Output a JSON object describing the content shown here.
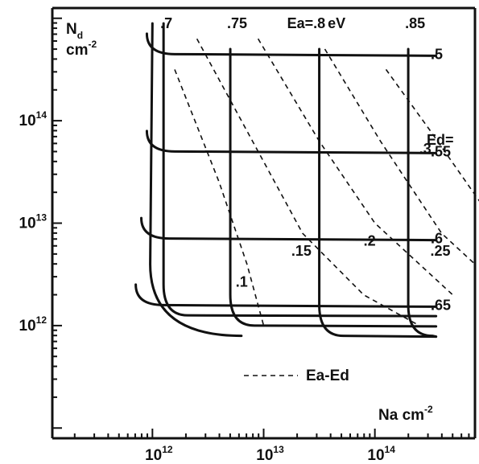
{
  "chart_data": {
    "type": "line",
    "title": "",
    "xlabel": {
      "base": "Na cm",
      "exp": "-2"
    },
    "ylabel": {
      "base": "N",
      "sub": "d",
      "unit": "cm",
      "exp": "-2"
    },
    "x_ticks": [
      {
        "base": "10",
        "exp": "12"
      },
      {
        "base": "10",
        "exp": "13"
      },
      {
        "base": "10",
        "exp": "14"
      }
    ],
    "y_ticks": [
      {
        "base": "10",
        "exp": "12"
      },
      {
        "base": "10",
        "exp": "13"
      },
      {
        "base": "10",
        "exp": "14"
      }
    ],
    "x_scale": "log",
    "y_scale": "log",
    "xlim_log10": [
      11.1,
      14.9
    ],
    "ylim_log10": [
      10.9,
      15.1
    ],
    "grid": false,
    "solid_family_name": "Ea",
    "solid_family_unit": "eV",
    "ea_curves": [
      {
        "label": ".7",
        "value": 0.7,
        "x_asymptote_log10": 12.1,
        "y_floor_log10": 12.1
      },
      {
        "label": ".75",
        "value": 0.75,
        "x_asymptote_log10": 12.7,
        "y_floor_log10": 12.0
      },
      {
        "label": ".8",
        "value": 0.8,
        "x_asymptote_log10": 13.5,
        "y_floor_log10": 11.9
      },
      {
        "label": ".85",
        "value": 0.85,
        "x_asymptote_log10": 14.3,
        "y_floor_log10": 11.9
      }
    ],
    "ea_header_label": "Ea=",
    "ed_header_label": "Ed=",
    "ed_curves": [
      {
        "label": ".5",
        "value": 0.5,
        "y_plateau_log10": 14.65,
        "x_knee_log10": 12.05
      },
      {
        "label": ".55",
        "value": 0.55,
        "y_plateau_log10": 13.7,
        "x_knee_log10": 12.05
      },
      {
        "label": ".6",
        "value": 0.6,
        "y_plateau_log10": 12.85,
        "x_knee_log10": 12.0
      },
      {
        "label": ".65",
        "value": 0.65,
        "y_plateau_log10": 12.2,
        "x_knee_log10": 11.95
      }
    ],
    "dashed_series_name": "Ea-Ed",
    "dashed_curves": [
      {
        "label": ".1",
        "value": 0.1,
        "points_log10": [
          [
            12.2,
            14.5
          ],
          [
            12.6,
            13.4
          ],
          [
            12.85,
            12.6
          ],
          [
            13.0,
            12.0
          ]
        ]
      },
      {
        "label": ".15",
        "value": 0.15,
        "points_log10": [
          [
            12.4,
            14.8
          ],
          [
            12.9,
            13.8
          ],
          [
            13.35,
            12.9
          ],
          [
            13.9,
            12.3
          ],
          [
            14.4,
            12.0
          ]
        ]
      },
      {
        "label": ".2",
        "value": 0.2,
        "points_log10": [
          [
            12.95,
            14.8
          ],
          [
            13.5,
            13.8
          ],
          [
            14.0,
            13.0
          ],
          [
            14.7,
            12.3
          ]
        ]
      },
      {
        "label": ".25",
        "value": 0.25,
        "points_log10": [
          [
            13.55,
            14.7
          ],
          [
            14.05,
            13.8
          ],
          [
            14.6,
            12.9
          ],
          [
            14.9,
            12.6
          ]
        ]
      },
      {
        "label": ".3",
        "value": 0.3,
        "points_log10": [
          [
            14.1,
            14.5
          ],
          [
            14.5,
            13.9
          ],
          [
            14.95,
            13.2
          ]
        ]
      }
    ]
  }
}
